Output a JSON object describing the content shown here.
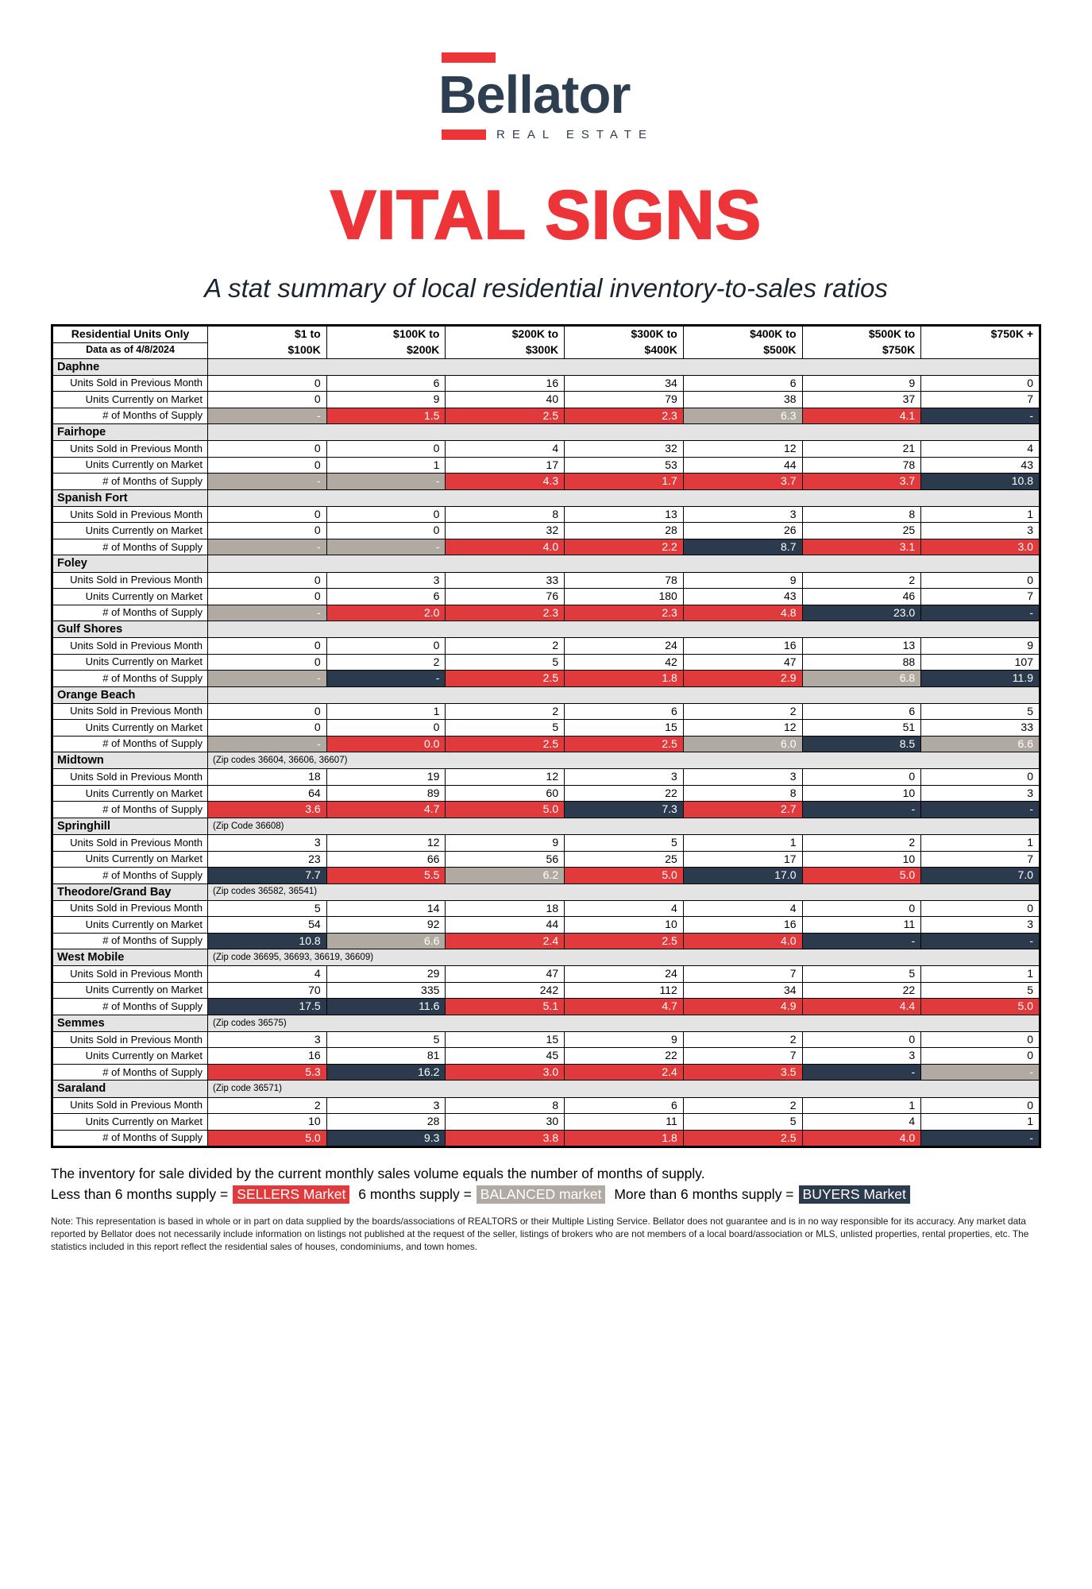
{
  "logo": {
    "name": "Bellator",
    "sub": "REAL ESTATE"
  },
  "title": "VITAL SIGNS",
  "subtitle": "A stat summary of local residential inventory-to-sales ratios",
  "colors": {
    "brandRed": "#ed3439",
    "cellRed": "#e13a3c",
    "navy": "#2b3b4d",
    "balanced": "#b1aaa2",
    "sectionBg": "#e4e4e4",
    "logoNavy": "#2d3e50"
  },
  "table": {
    "header": {
      "title": "Residential Units Only",
      "subtitle": "Data as of 4/8/2024",
      "columns": [
        {
          "line1": "$1 to",
          "line2": "$100K"
        },
        {
          "line1": "$100K to",
          "line2": "$200K"
        },
        {
          "line1": "$200K to",
          "line2": "$300K"
        },
        {
          "line1": "$300K to",
          "line2": "$400K"
        },
        {
          "line1": "$400K to",
          "line2": "$500K"
        },
        {
          "line1": "$500K to",
          "line2": "$750K"
        },
        {
          "line1": "$750K +",
          "line2": ""
        }
      ]
    },
    "row_labels": [
      "Units Sold in Previous Month",
      "Units Currently on Market",
      "# of Months of Supply"
    ],
    "sections": [
      {
        "name": "Daphne",
        "zip": "",
        "sold": [
          "0",
          "6",
          "16",
          "34",
          "6",
          "9",
          "0"
        ],
        "market": [
          "0",
          "9",
          "40",
          "79",
          "38",
          "37",
          "7"
        ],
        "supply_values": [
          "-",
          "1.5",
          "2.5",
          "2.3",
          "6.3",
          "4.1",
          "-"
        ],
        "supply_market": [
          "balanced",
          "sellers",
          "sellers",
          "sellers",
          "balanced",
          "sellers",
          "buyers"
        ]
      },
      {
        "name": "Fairhope",
        "zip": "",
        "sold": [
          "0",
          "0",
          "4",
          "32",
          "12",
          "21",
          "4"
        ],
        "market": [
          "0",
          "1",
          "17",
          "53",
          "44",
          "78",
          "43"
        ],
        "supply_values": [
          "-",
          "-",
          "4.3",
          "1.7",
          "3.7",
          "3.7",
          "10.8"
        ],
        "supply_market": [
          "balanced",
          "balanced",
          "sellers",
          "sellers",
          "sellers",
          "sellers",
          "buyers"
        ]
      },
      {
        "name": "Spanish Fort",
        "zip": "",
        "sold": [
          "0",
          "0",
          "8",
          "13",
          "3",
          "8",
          "1"
        ],
        "market": [
          "0",
          "0",
          "32",
          "28",
          "26",
          "25",
          "3"
        ],
        "supply_values": [
          "-",
          "-",
          "4.0",
          "2.2",
          "8.7",
          "3.1",
          "3.0"
        ],
        "supply_market": [
          "balanced",
          "balanced",
          "sellers",
          "sellers",
          "buyers",
          "sellers",
          "sellers"
        ]
      },
      {
        "name": "Foley",
        "zip": "",
        "sold": [
          "0",
          "3",
          "33",
          "78",
          "9",
          "2",
          "0"
        ],
        "market": [
          "0",
          "6",
          "76",
          "180",
          "43",
          "46",
          "7"
        ],
        "supply_values": [
          "-",
          "2.0",
          "2.3",
          "2.3",
          "4.8",
          "23.0",
          "-"
        ],
        "supply_market": [
          "balanced",
          "sellers",
          "sellers",
          "sellers",
          "sellers",
          "buyers",
          "buyers"
        ]
      },
      {
        "name": "Gulf Shores",
        "zip": "",
        "sold": [
          "0",
          "0",
          "2",
          "24",
          "16",
          "13",
          "9"
        ],
        "market": [
          "0",
          "2",
          "5",
          "42",
          "47",
          "88",
          "107"
        ],
        "supply_values": [
          "-",
          "-",
          "2.5",
          "1.8",
          "2.9",
          "6.8",
          "11.9"
        ],
        "supply_market": [
          "balanced",
          "buyers",
          "sellers",
          "sellers",
          "sellers",
          "balanced",
          "buyers"
        ]
      },
      {
        "name": "Orange Beach",
        "zip": "",
        "sold": [
          "0",
          "1",
          "2",
          "6",
          "2",
          "6",
          "5"
        ],
        "market": [
          "0",
          "0",
          "5",
          "15",
          "12",
          "51",
          "33"
        ],
        "supply_values": [
          "-",
          "0.0",
          "2.5",
          "2.5",
          "6.0",
          "8.5",
          "6.6"
        ],
        "supply_market": [
          "balanced",
          "sellers",
          "sellers",
          "sellers",
          "balanced",
          "buyers",
          "balanced"
        ]
      },
      {
        "name": "Midtown",
        "zip": "(Zip codes 36604, 36606, 36607)",
        "sold": [
          "18",
          "19",
          "12",
          "3",
          "3",
          "0",
          "0"
        ],
        "market": [
          "64",
          "89",
          "60",
          "22",
          "8",
          "10",
          "3"
        ],
        "supply_values": [
          "3.6",
          "4.7",
          "5.0",
          "7.3",
          "2.7",
          "-",
          "-"
        ],
        "supply_market": [
          "sellers",
          "sellers",
          "sellers",
          "buyers",
          "sellers",
          "buyers",
          "buyers"
        ]
      },
      {
        "name": "Springhill",
        "zip": "(Zip Code 36608)",
        "sold": [
          "3",
          "12",
          "9",
          "5",
          "1",
          "2",
          "1"
        ],
        "market": [
          "23",
          "66",
          "56",
          "25",
          "17",
          "10",
          "7"
        ],
        "supply_values": [
          "7.7",
          "5.5",
          "6.2",
          "5.0",
          "17.0",
          "5.0",
          "7.0"
        ],
        "supply_market": [
          "buyers",
          "sellers",
          "balanced",
          "sellers",
          "buyers",
          "sellers",
          "buyers"
        ]
      },
      {
        "name": "Theodore/Grand Bay",
        "zip": "(Zip codes 36582, 36541)",
        "sold": [
          "5",
          "14",
          "18",
          "4",
          "4",
          "0",
          "0"
        ],
        "market": [
          "54",
          "92",
          "44",
          "10",
          "16",
          "11",
          "3"
        ],
        "supply_values": [
          "10.8",
          "6.6",
          "2.4",
          "2.5",
          "4.0",
          "-",
          "-"
        ],
        "supply_market": [
          "buyers",
          "balanced",
          "sellers",
          "sellers",
          "sellers",
          "buyers",
          "buyers"
        ]
      },
      {
        "name": "West Mobile",
        "zip": "(Zip code 36695, 36693, 36619, 36609)",
        "sold": [
          "4",
          "29",
          "47",
          "24",
          "7",
          "5",
          "1"
        ],
        "market": [
          "70",
          "335",
          "242",
          "112",
          "34",
          "22",
          "5"
        ],
        "supply_values": [
          "17.5",
          "11.6",
          "5.1",
          "4.7",
          "4.9",
          "4.4",
          "5.0"
        ],
        "supply_market": [
          "buyers",
          "buyers",
          "sellers",
          "sellers",
          "sellers",
          "sellers",
          "sellers"
        ]
      },
      {
        "name": "Semmes",
        "zip": "(Zip codes 36575)",
        "sold": [
          "3",
          "5",
          "15",
          "9",
          "2",
          "0",
          "0"
        ],
        "market": [
          "16",
          "81",
          "45",
          "22",
          "7",
          "3",
          "0"
        ],
        "supply_values": [
          "5.3",
          "16.2",
          "3.0",
          "2.4",
          "3.5",
          "-",
          "-"
        ],
        "supply_market": [
          "sellers",
          "buyers",
          "sellers",
          "sellers",
          "sellers",
          "buyers",
          "balanced"
        ]
      },
      {
        "name": "Saraland",
        "zip": "(Zip code 36571)",
        "sold": [
          "2",
          "3",
          "8",
          "6",
          "2",
          "1",
          "0"
        ],
        "market": [
          "10",
          "28",
          "30",
          "11",
          "5",
          "4",
          "1"
        ],
        "supply_values": [
          "5.0",
          "9.3",
          "3.8",
          "1.8",
          "2.5",
          "4.0",
          "-"
        ],
        "supply_market": [
          "sellers",
          "buyers",
          "sellers",
          "sellers",
          "sellers",
          "sellers",
          "buyers"
        ]
      }
    ]
  },
  "legend": {
    "line1": "The inventory for sale divided by the current monthly sales volume equals the number of months of supply.",
    "items": [
      {
        "prefix": "Less than 6 months supply =",
        "label": "SELLERS Market",
        "type": "sellers"
      },
      {
        "prefix": "6 months supply =",
        "label": "BALANCED market",
        "type": "balanced"
      },
      {
        "prefix": "More than 6 months supply =",
        "label": "BUYERS Market",
        "type": "buyers"
      }
    ]
  },
  "note": "Note: This representation is based in whole or in part on data supplied by the boards/associations of REALTORS or their Multiple Listing Service. Bellator does not guarantee and is in no way responsible for its accuracy. Any market data reported by Bellator does not necessarily include information on listings not published at the request of the seller, listings of brokers who are not members of a local board/association or MLS, unlisted properties, rental properties, etc. The statistics included in this report reflect the residential sales of houses, condominiums, and town homes."
}
